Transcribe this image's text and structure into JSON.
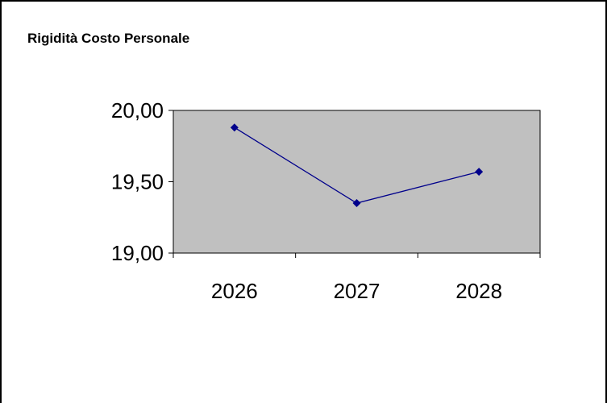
{
  "chart_data": {
    "type": "line",
    "title": "Rigidità Costo Personale",
    "categories": [
      "2026",
      "2027",
      "2028"
    ],
    "series": [
      {
        "values": [
          19.88,
          19.35,
          19.57
        ]
      }
    ],
    "xlabel": "",
    "ylabel": "",
    "ylim": [
      19.0,
      20.0
    ],
    "yticks": [
      "19,00",
      "19,50",
      "20,00"
    ],
    "grid": false,
    "legend": "none",
    "colors": {
      "line": "#00008b",
      "plot_area": "#c0c0c0",
      "frame": "#000000"
    }
  }
}
